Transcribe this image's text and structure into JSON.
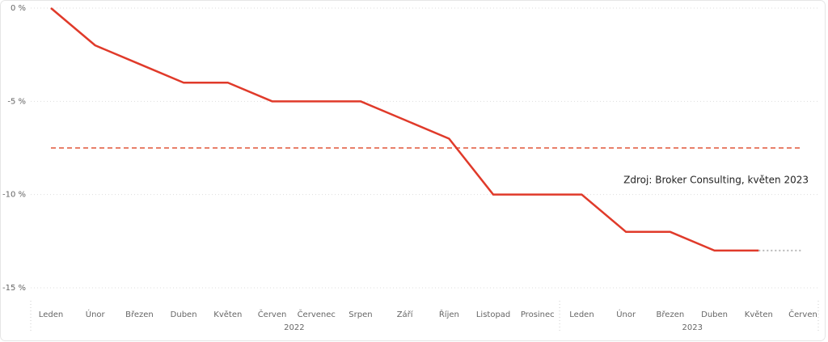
{
  "chart_data": {
    "type": "line",
    "categories": [
      "Leden",
      "Únor",
      "Březen",
      "Duben",
      "Květen",
      "Červen",
      "Červenec",
      "Srpen",
      "Září",
      "Říjen",
      "Listopad",
      "Prosinec",
      "Leden",
      "Únor",
      "Březen",
      "Duben",
      "Květen",
      "Červen"
    ],
    "groups": [
      {
        "label": "2022",
        "span": 12
      },
      {
        "label": "2023",
        "span": 6
      }
    ],
    "series": [
      {
        "color": "#e03a2a",
        "values": [
          0,
          -2,
          -3,
          -4,
          -4,
          -5,
          -5,
          -5,
          -6,
          -7,
          -10,
          -10,
          -10,
          -12,
          -12,
          -13,
          -13,
          null
        ]
      },
      {
        "color": "#b8b8b8",
        "dash": "dotted",
        "values": [
          null,
          null,
          null,
          null,
          null,
          null,
          null,
          null,
          null,
          null,
          null,
          null,
          null,
          null,
          null,
          null,
          -13,
          -13
        ]
      }
    ],
    "reference_line": {
      "value": -7.5,
      "color": "#e8806a"
    },
    "annotation": "Zdroj: Broker Consulting, květen 2023",
    "ylim": [
      -15,
      0
    ],
    "yticks": [
      {
        "value": 0,
        "label": "0 %"
      },
      {
        "value": -5,
        "label": "-5 %"
      },
      {
        "value": -10,
        "label": "-10 %"
      },
      {
        "value": -15,
        "label": "-15 %"
      }
    ],
    "grid": true
  }
}
